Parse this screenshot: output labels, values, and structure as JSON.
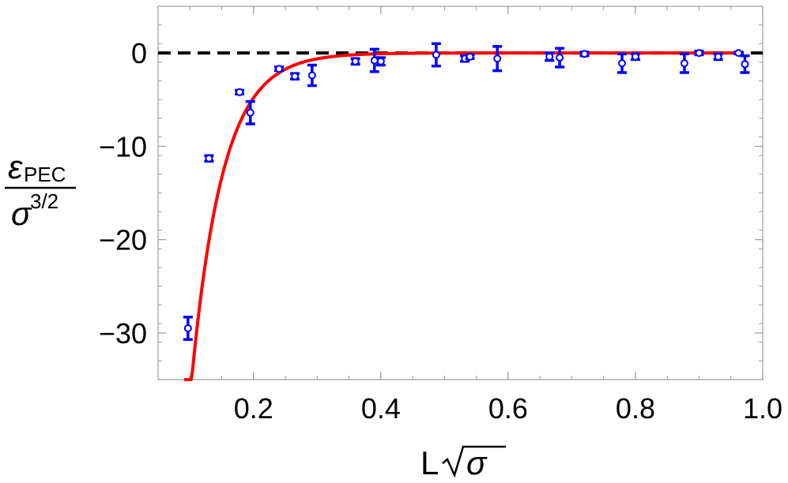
{
  "chart_data": {
    "type": "scatter",
    "title": "",
    "xlabel": "L√σ",
    "ylabel": "εPEC / σ^3/2",
    "xlim": [
      0.05,
      1.0
    ],
    "ylim": [
      -35,
      5
    ],
    "x_ticks": [
      0.2,
      0.4,
      0.6,
      0.8,
      1.0
    ],
    "x_tick_labels": [
      "0.2",
      "0.4",
      "0.6",
      "0.8",
      "1.0"
    ],
    "y_ticks": [
      0,
      -10,
      -20,
      -30
    ],
    "y_tick_labels": [
      "0",
      "−10",
      "−20",
      "−30"
    ],
    "grid": false,
    "frame": true,
    "reference_line": {
      "y": 0,
      "style": "dashed",
      "color": "#000000"
    },
    "fit_curve": {
      "color": "#ff0000",
      "style": "solid"
    },
    "series": [
      {
        "marker_color": "#0000ff",
        "marker": "open-circle-with-errorbars",
        "points": [
          {
            "x": 0.097,
            "y": -29.5,
            "err": 1.2
          },
          {
            "x": 0.13,
            "y": -11.3,
            "err": 0.3
          },
          {
            "x": 0.178,
            "y": -4.2,
            "err": 0.2
          },
          {
            "x": 0.195,
            "y": -6.4,
            "err": 1.2
          },
          {
            "x": 0.24,
            "y": -1.7,
            "err": 0.2
          },
          {
            "x": 0.265,
            "y": -2.5,
            "err": 0.3
          },
          {
            "x": 0.292,
            "y": -2.4,
            "err": 1.1
          },
          {
            "x": 0.36,
            "y": -0.9,
            "err": 0.3
          },
          {
            "x": 0.39,
            "y": -0.8,
            "err": 1.2
          },
          {
            "x": 0.4,
            "y": -0.9,
            "err": 0.4
          },
          {
            "x": 0.487,
            "y": -0.2,
            "err": 1.2
          },
          {
            "x": 0.532,
            "y": -0.6,
            "err": 0.3
          },
          {
            "x": 0.54,
            "y": -0.4,
            "err": 0.2
          },
          {
            "x": 0.583,
            "y": -0.6,
            "err": 1.3
          },
          {
            "x": 0.665,
            "y": -0.4,
            "err": 0.4
          },
          {
            "x": 0.681,
            "y": -0.5,
            "err": 1.0
          },
          {
            "x": 0.72,
            "y": -0.1,
            "err": 0.2
          },
          {
            "x": 0.779,
            "y": -1.1,
            "err": 1.0
          },
          {
            "x": 0.8,
            "y": -0.4,
            "err": 0.3
          },
          {
            "x": 0.877,
            "y": -1.1,
            "err": 1.0
          },
          {
            "x": 0.9,
            "y": 0.0,
            "err": 0.2
          },
          {
            "x": 0.93,
            "y": -0.4,
            "err": 0.3
          },
          {
            "x": 0.962,
            "y": 0.0,
            "err": 0.1
          },
          {
            "x": 0.972,
            "y": -1.2,
            "err": 0.9
          }
        ]
      }
    ]
  }
}
